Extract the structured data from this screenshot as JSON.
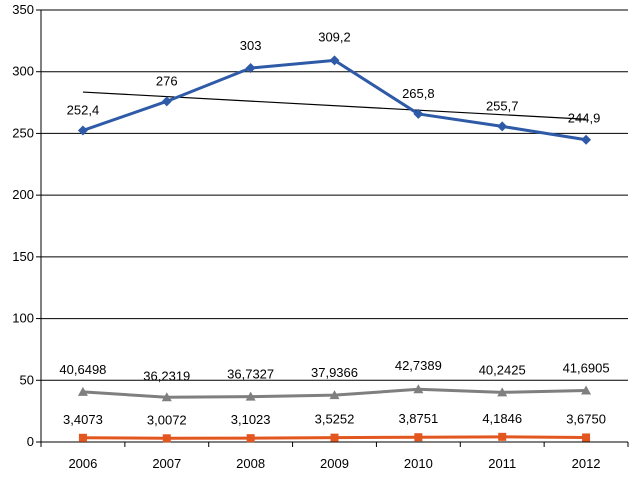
{
  "chart_data": {
    "type": "line",
    "categories": [
      "2006",
      "2007",
      "2008",
      "2009",
      "2010",
      "2011",
      "2012"
    ],
    "ylim": [
      0,
      350
    ],
    "yticks": [
      0,
      50,
      100,
      150,
      200,
      250,
      300,
      350
    ],
    "ytick_labels": [
      "0",
      "50",
      "100",
      "150",
      "200",
      "250",
      "300",
      "350"
    ],
    "grid": true,
    "series": [
      {
        "name": "series-blue",
        "color": "#2e5aa7",
        "marker": "diamond",
        "values": [
          252.4,
          276,
          303,
          309.2,
          265.8,
          255.7,
          244.9
        ],
        "labels": [
          "252,4",
          "276",
          "303",
          "309,2",
          "265,8",
          "255,7",
          "244,9"
        ]
      },
      {
        "name": "series-gray",
        "color": "#7f7f7f",
        "marker": "triangle",
        "values": [
          40.6498,
          36.2319,
          36.7327,
          37.9366,
          42.7389,
          40.2425,
          41.6905
        ],
        "labels": [
          "40,6498",
          "36,2319",
          "36,7327",
          "37,9366",
          "42,7389",
          "40,2425",
          "41,6905"
        ]
      },
      {
        "name": "series-orange",
        "color": "#e2561f",
        "marker": "square",
        "values": [
          3.4073,
          3.0072,
          3.1023,
          3.5252,
          3.8751,
          4.1846,
          3.675
        ],
        "labels": [
          "3,4073",
          "3,0072",
          "3,1023",
          "3,5252",
          "3,8751",
          "4,1846",
          "3,6750"
        ]
      }
    ],
    "trendline": {
      "series": "series-blue",
      "type": "linear",
      "color": "#000000",
      "start_value": 283.5,
      "end_value": 261.5
    }
  }
}
